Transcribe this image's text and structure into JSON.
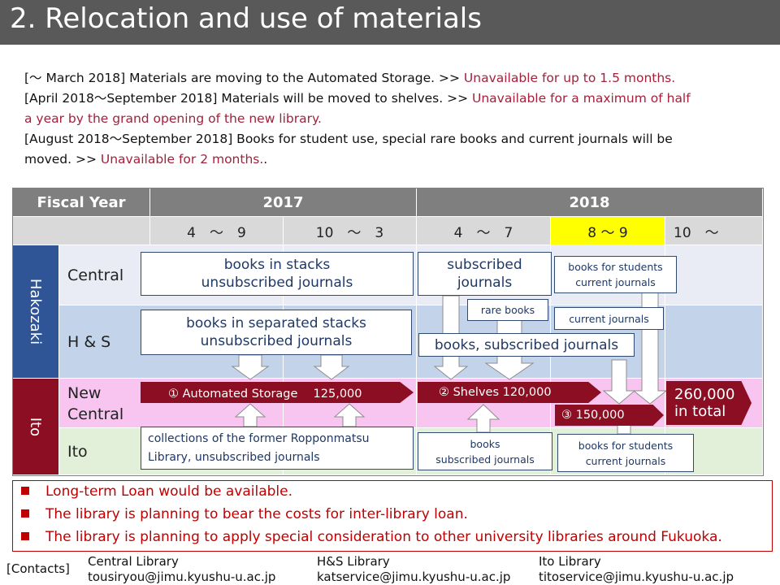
{
  "title": "2. Relocation and use of materials",
  "intro": {
    "line1_prefix": "[〜 March 2018] Materials are moving to the Automated Storage. >> ",
    "line1_red": "Unavailable for up to 1.5 months.",
    "line2_prefix": "[April 2018〜September 2018] Materials will be moved to shelves. >> ",
    "line2_red": "Unavailable for a maximum of half",
    "line3_red": "a year by the grand opening of the new library.",
    "line4": "[August 2018〜September 2018] Books for student use, special rare books and current journals will be",
    "line5_prefix": "moved. >> ",
    "line5_red": "Unavailable for 2 months.",
    "line5_suffix": "."
  },
  "table": {
    "fiscal_year": "Fiscal Year",
    "years": [
      "2017",
      "2018"
    ],
    "periods": [
      "4　～　9",
      "10　～　3",
      "4　～　7",
      "8 ～ 9",
      "10　～"
    ],
    "campus": {
      "hakozaki": "Hakozaki",
      "ito": "Ito"
    },
    "rows": {
      "central": "Central",
      "hs": "H & S",
      "new_central_1": "New",
      "new_central_2": "Central",
      "ito": "Ito"
    },
    "colors": {
      "header": "#7f7f7f",
      "subheader": "#d9d9d9",
      "hakozaki": "#2f5597",
      "ito": "#8b0e22",
      "central_row": "#e9ebf5",
      "hs_row": "#c3d3ea",
      "new_central_row": "#f8c4f0",
      "ito_row": "#e2efd9",
      "highlight": "#ffff00",
      "red_text": "#a5203a"
    }
  },
  "boxes": {
    "stacks_1": "books in stacks",
    "stacks_2": "unsubscribed journals",
    "subscribed_1": "subscribed",
    "subscribed_2": "journals",
    "students_1": "books for students",
    "students_2": "current journals",
    "rare_books": "rare books",
    "current_journals": "current journals",
    "sep_stacks_1": "books in separated stacks",
    "sep_stacks_2": "unsubscribed journals",
    "books_subscribed": "books, subscribed journals",
    "ropponmatsu_1": "collections of the former Ropponmatsu",
    "ropponmatsu_2": "Library, unsubscribed journals",
    "ito_books_1": "books",
    "ito_books_2": "subscribed journals",
    "ito_students_1": "books for students",
    "ito_students_2": "current journals"
  },
  "ribbons": {
    "automated": "① Automated Storage　 125,000",
    "shelves": "② Shelves 120,000",
    "third": "③ 150,000",
    "total_1": "260,000",
    "total_2": "in total"
  },
  "bullets": [
    "Long-term Loan would be available.",
    "The library is planning to bear the costs for inter-library loan.",
    "The library is planning to apply special consideration to other university libraries around Fukuoka."
  ],
  "contacts": {
    "label": "[Contacts]",
    "central_name": "Central Library",
    "central_email": "tousiryou@jimu.kyushu-u.ac.jp",
    "hs_name": "H&S Library",
    "hs_email": "katservice@jimu.kyushu-u.ac.jp",
    "ito_name": "Ito Library",
    "ito_email": "titoservice@jimu.kyushu-u.ac.jp"
  }
}
